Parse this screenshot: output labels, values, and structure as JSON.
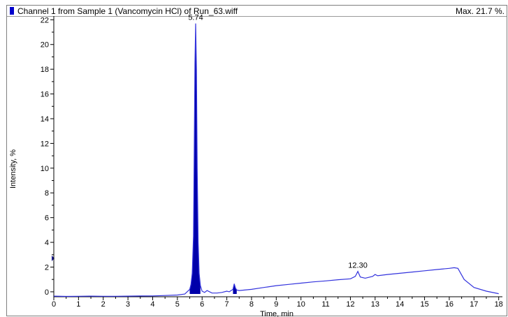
{
  "header": {
    "title": "Channel 1 from Sample 1 (Vancomycin HCl) of Run_63.wiff",
    "max_label": "Max. 21.7 %."
  },
  "colors": {
    "trace": "#3333dd",
    "peak_fill": "#0000aa",
    "axis": "#000000"
  },
  "chart_data": {
    "type": "line",
    "title": "Channel 1 from Sample 1 (Vancomycin HCl) of Run_63.wiff",
    "xlabel": "Time, min",
    "ylabel": "Intensity, %",
    "xlim": [
      0,
      18.15
    ],
    "ylim": [
      -0.4,
      22.3
    ],
    "x_ticks": [
      0,
      1,
      2,
      3,
      4,
      5,
      6,
      7,
      8,
      9,
      10,
      11,
      12,
      13,
      14,
      15,
      16,
      17,
      18
    ],
    "y_ticks": [
      0,
      2,
      4,
      6,
      8,
      10,
      12,
      14,
      16,
      18,
      20,
      22
    ],
    "max_intensity_percent": 21.7,
    "series": [
      {
        "x": [
          0,
          0.5,
          1,
          1.5,
          2,
          2.5,
          3,
          3.5,
          4,
          4.5,
          5,
          5.3,
          5.5,
          5.55,
          5.6,
          5.65,
          5.68,
          5.71,
          5.74,
          5.77,
          5.8,
          5.84,
          5.88,
          5.93,
          6.0,
          6.1,
          6.2,
          6.4,
          6.6,
          6.8,
          7.0,
          7.1,
          7.25,
          7.3,
          7.35,
          7.4,
          7.5,
          8.0,
          8.5,
          9.0,
          9.5,
          10.0,
          10.5,
          11.0,
          11.5,
          12.0,
          12.2,
          12.3,
          12.4,
          12.6,
          12.9,
          13.0,
          13.1,
          13.5,
          14.0,
          14.5,
          15.0,
          15.5,
          16.0,
          16.2,
          16.35,
          16.6,
          17.0,
          17.5,
          18.0
        ],
        "y": [
          -0.35,
          -0.37,
          -0.36,
          -0.35,
          -0.36,
          -0.36,
          -0.35,
          -0.34,
          -0.33,
          -0.3,
          -0.26,
          -0.18,
          0.2,
          0.6,
          1.5,
          4.5,
          11.0,
          18.5,
          21.7,
          18.0,
          10.0,
          4.0,
          1.5,
          0.5,
          0.05,
          -0.05,
          0.1,
          -0.1,
          -0.1,
          -0.05,
          0.05,
          0.0,
          0.2,
          0.65,
          0.3,
          0.15,
          0.1,
          0.2,
          0.35,
          0.5,
          0.6,
          0.7,
          0.8,
          0.88,
          0.98,
          1.05,
          1.25,
          1.65,
          1.2,
          1.1,
          1.25,
          1.4,
          1.3,
          1.4,
          1.5,
          1.6,
          1.7,
          1.8,
          1.9,
          1.95,
          1.9,
          1.0,
          0.35,
          0.05,
          -0.15
        ]
      }
    ],
    "annotations": [
      {
        "x": 5.74,
        "y": 21.7,
        "text": "5.74"
      },
      {
        "x": 12.3,
        "y": 1.65,
        "text": "12.30"
      }
    ]
  }
}
